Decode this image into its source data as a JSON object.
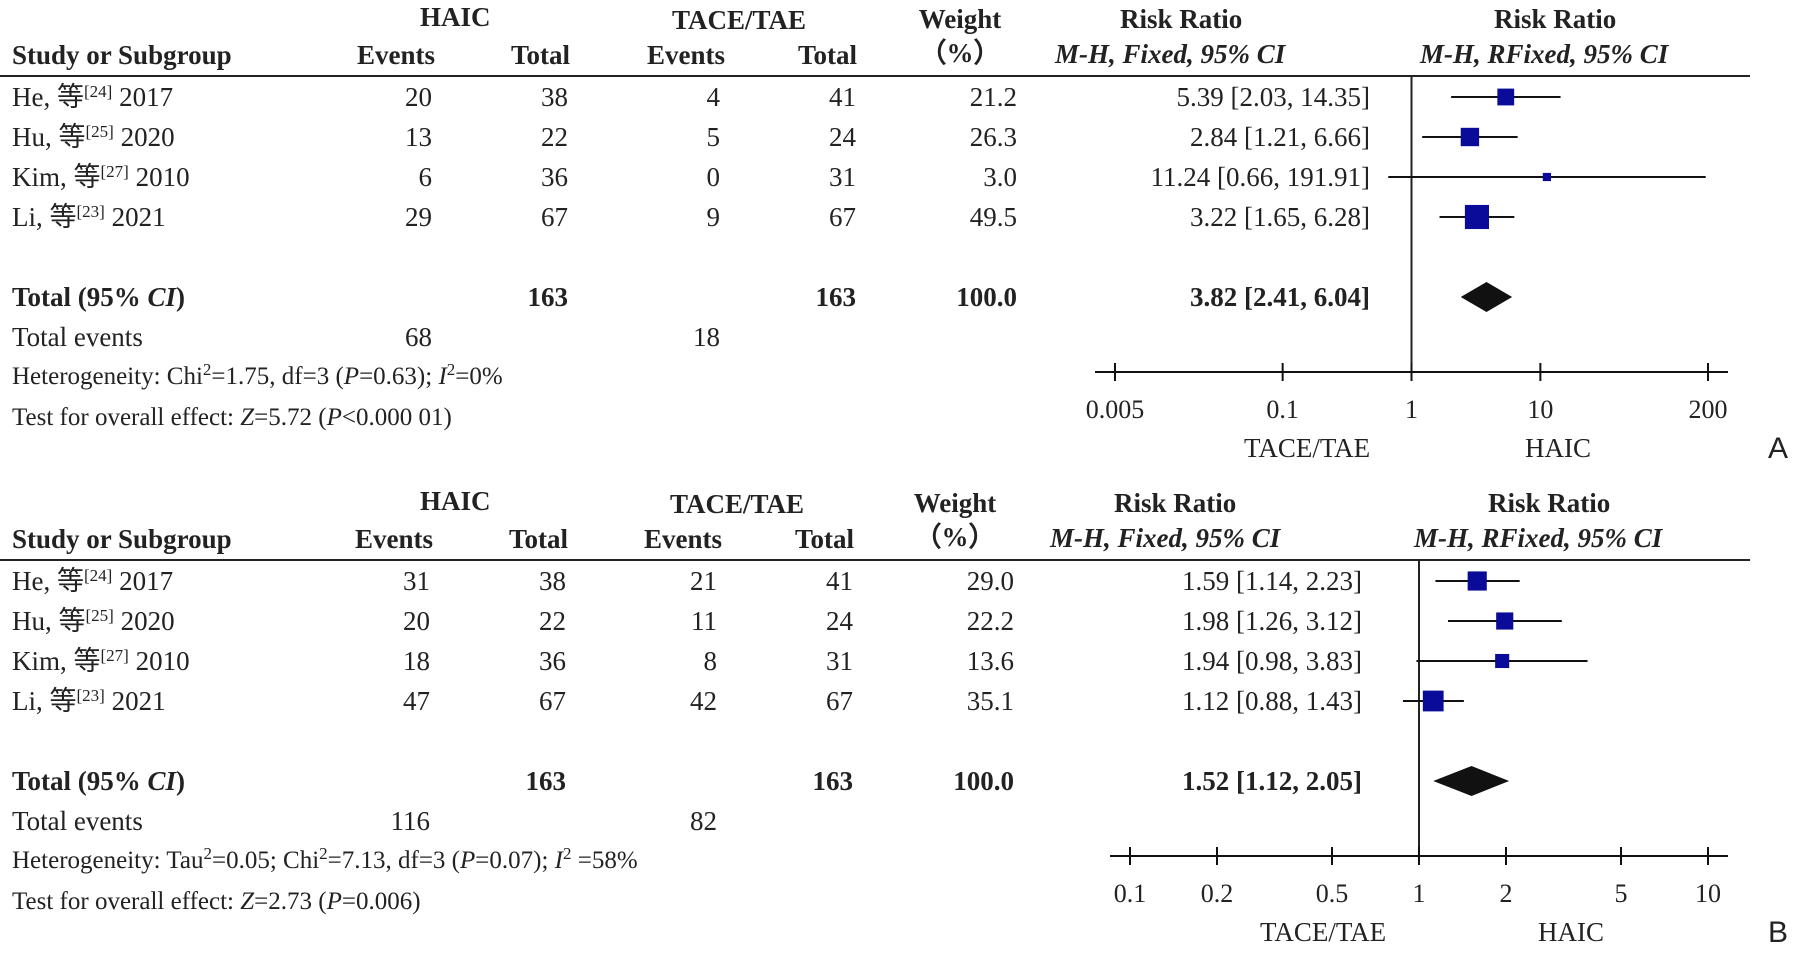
{
  "panels": [
    {
      "id": "A",
      "label": "A",
      "headers": {
        "group1": "HAIC",
        "group2": "TACE/TAE",
        "weight1": "Weight",
        "weight2": "（%）",
        "rr_text1": "Risk Ratio",
        "rr_text2": "M-H, Fixed, 95% CI",
        "rr_plot1": "Risk Ratio",
        "rr_plot2": "M-H, RFixed, 95% CI",
        "study": "Study or Subgroup",
        "events1": "Events",
        "total1": "Total",
        "events2": "Events",
        "total2": "Total"
      },
      "studies": [
        {
          "name": "He, 等",
          "ref": "[24]",
          "year": "2017",
          "e1": "20",
          "t1": "38",
          "e2": "4",
          "t2": "41",
          "weight": "21.2",
          "ci_text": "5.39 [2.03, 14.35]"
        },
        {
          "name": "Hu, 等",
          "ref": "[25]",
          "year": "2020",
          "e1": "13",
          "t1": "22",
          "e2": "5",
          "t2": "24",
          "weight": "26.3",
          "ci_text": "2.84 [1.21, 6.66]"
        },
        {
          "name": "Kim, 等",
          "ref": "[27]",
          "year": "2010",
          "e1": "6",
          "t1": "36",
          "e2": "0",
          "t2": "31",
          "weight": "3.0",
          "ci_text": "11.24 [0.66, 191.91]"
        },
        {
          "name": "Li, 等",
          "ref": "[23]",
          "year": "2021",
          "e1": "29",
          "t1": "67",
          "e2": "9",
          "t2": "67",
          "weight": "49.5",
          "ci_text": "3.22 [1.65, 6.28]"
        }
      ],
      "total": {
        "label_main": "Total (95% ",
        "label_ci": "CI",
        "label_end": ")",
        "t1": "163",
        "t2": "163",
        "weight": "100.0",
        "ci_text": "3.82 [2.41, 6.04]"
      },
      "total_events": {
        "label": "Total events",
        "e1": "68",
        "e2": "18"
      },
      "heterogeneity": {
        "p1": "Heterogeneity: Chi",
        "p2": "2",
        "p3": "=1.75, df=3 (",
        "p4": "P",
        "p5": "=0.63); ",
        "p6": "I",
        "p7": "2",
        "p8": "=0%"
      },
      "overall": {
        "p1": "Test for overall effect: ",
        "p2": "Z",
        "p3": "=5.72 (",
        "p4": "P",
        "p5": "<0.000 01)"
      },
      "axis_favours_left": "TACE/TAE",
      "axis_favours_right": "HAIC"
    },
    {
      "id": "B",
      "label": "B",
      "headers": {
        "group1": "HAIC",
        "group2": "TACE/TAE",
        "weight1": "Weight",
        "weight2": "（%）",
        "rr_text1": "Risk Ratio",
        "rr_text2": "M-H, Fixed, 95% CI",
        "rr_plot1": "Risk Ratio",
        "rr_plot2": "M-H, RFixed, 95% CI",
        "study": "Study or Subgroup",
        "events1": "Events",
        "total1": "Total",
        "events2": "Events",
        "total2": "Total"
      },
      "studies": [
        {
          "name": "He, 等",
          "ref": "[24]",
          "year": "2017",
          "e1": "31",
          "t1": "38",
          "e2": "21",
          "t2": "41",
          "weight": "29.0",
          "ci_text": "1.59 [1.14, 2.23]"
        },
        {
          "name": "Hu, 等",
          "ref": "[25]",
          "year": "2020",
          "e1": "20",
          "t1": "22",
          "e2": "11",
          "t2": "24",
          "weight": "22.2",
          "ci_text": "1.98 [1.26, 3.12]"
        },
        {
          "name": "Kim, 等",
          "ref": "[27]",
          "year": "2010",
          "e1": "18",
          "t1": "36",
          "e2": "8",
          "t2": "31",
          "weight": "13.6",
          "ci_text": "1.94 [0.98, 3.83]"
        },
        {
          "name": "Li, 等",
          "ref": "[23]",
          "year": "2021",
          "e1": "47",
          "t1": "67",
          "e2": "42",
          "t2": "67",
          "weight": "35.1",
          "ci_text": "1.12 [0.88, 1.43]"
        }
      ],
      "total": {
        "label_main": "Total (95% ",
        "label_ci": "CI",
        "label_end": ")",
        "t1": "163",
        "t2": "163",
        "weight": "100.0",
        "ci_text": "1.52 [1.12, 2.05]"
      },
      "total_events": {
        "label": "Total events",
        "e1": "116",
        "e2": "82"
      },
      "heterogeneity": {
        "p1": "Heterogeneity: Tau",
        "p2": "2",
        "p3": "=0.05; Chi",
        "p4": "2",
        "p5": "=7.13, df=3 (",
        "p6": "P",
        "p7": "=0.07); ",
        "p8": "I",
        "p9": "2",
        "p10": " =58%"
      },
      "overall": {
        "p1": "Test for overall effect: ",
        "p2": "Z",
        "p3": "=2.73 (",
        "p4": "P",
        "p5": "=0.006)"
      },
      "axis_favours_left": "TACE/TAE",
      "axis_favours_right": "HAIC"
    }
  ],
  "chart_data": [
    {
      "type": "forest",
      "scale": "log",
      "xlim": [
        0.005,
        200
      ],
      "ticks": [
        0.005,
        0.1,
        1,
        10,
        200
      ],
      "tick_labels": [
        "0.005",
        "0.1",
        "1",
        "10",
        "200"
      ],
      "reference_line": 1,
      "marker_color": "#0b0b9a",
      "studies": [
        {
          "name": "He, 等 2017",
          "rr": 5.39,
          "lo": 2.03,
          "hi": 14.35,
          "weight": 21.2
        },
        {
          "name": "Hu, 等 2020",
          "rr": 2.84,
          "lo": 1.21,
          "hi": 6.66,
          "weight": 26.3
        },
        {
          "name": "Kim, 等 2010",
          "rr": 11.24,
          "lo": 0.66,
          "hi": 191.91,
          "weight": 3.0
        },
        {
          "name": "Li, 等 2021",
          "rr": 3.22,
          "lo": 1.65,
          "hi": 6.28,
          "weight": 49.5
        }
      ],
      "pooled": {
        "rr": 3.82,
        "lo": 2.41,
        "hi": 6.04
      }
    },
    {
      "type": "forest",
      "scale": "log",
      "xlim": [
        0.1,
        10
      ],
      "ticks": [
        0.1,
        0.2,
        0.5,
        1,
        2,
        5,
        10
      ],
      "tick_labels": [
        "0.1",
        "0.2",
        "0.5",
        "1",
        "2",
        "5",
        "10"
      ],
      "reference_line": 1,
      "marker_color": "#0b0b9a",
      "studies": [
        {
          "name": "He, 等 2017",
          "rr": 1.59,
          "lo": 1.14,
          "hi": 2.23,
          "weight": 29.0
        },
        {
          "name": "Hu, 等 2020",
          "rr": 1.98,
          "lo": 1.26,
          "hi": 3.12,
          "weight": 22.2
        },
        {
          "name": "Kim, 等 2010",
          "rr": 1.94,
          "lo": 0.98,
          "hi": 3.83,
          "weight": 13.6
        },
        {
          "name": "Li, 等 2021",
          "rr": 1.12,
          "lo": 0.88,
          "hi": 1.43,
          "weight": 35.1
        }
      ],
      "pooled": {
        "rr": 1.52,
        "lo": 1.12,
        "hi": 2.05
      }
    }
  ]
}
